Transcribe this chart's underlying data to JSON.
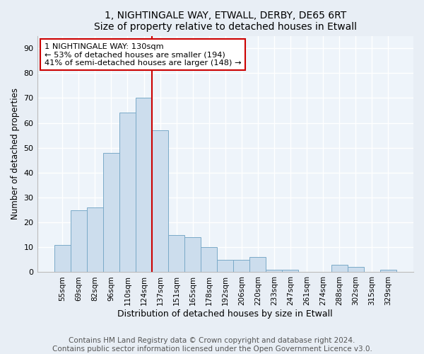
{
  "title": "1, NIGHTINGALE WAY, ETWALL, DERBY, DE65 6RT",
  "subtitle": "Size of property relative to detached houses in Etwall",
  "xlabel": "Distribution of detached houses by size in Etwall",
  "ylabel": "Number of detached properties",
  "categories": [
    "55sqm",
    "69sqm",
    "82sqm",
    "96sqm",
    "110sqm",
    "124sqm",
    "137sqm",
    "151sqm",
    "165sqm",
    "178sqm",
    "192sqm",
    "206sqm",
    "220sqm",
    "233sqm",
    "247sqm",
    "261sqm",
    "274sqm",
    "288sqm",
    "302sqm",
    "315sqm",
    "329sqm"
  ],
  "values": [
    11,
    25,
    26,
    48,
    64,
    70,
    57,
    15,
    14,
    10,
    5,
    5,
    6,
    1,
    1,
    0,
    0,
    3,
    2,
    0,
    1
  ],
  "bar_color": "#ccdded",
  "bar_edge_color": "#7aaac8",
  "vline_x": 6.0,
  "vline_color": "#cc0000",
  "annotation_lines": [
    "1 NIGHTINGALE WAY: 130sqm",
    "← 53% of detached houses are smaller (194)",
    "41% of semi-detached houses are larger (148) →"
  ],
  "ylim": [
    0,
    95
  ],
  "yticks": [
    0,
    10,
    20,
    30,
    40,
    50,
    60,
    70,
    80,
    90
  ],
  "footer_line1": "Contains HM Land Registry data © Crown copyright and database right 2024.",
  "footer_line2": "Contains public sector information licensed under the Open Government Licence v3.0.",
  "bg_color": "#e8eef5",
  "plot_bg_color": "#eef4fa",
  "grid_color": "#ffffff",
  "title_fontsize": 10,
  "footer_fontsize": 7.5
}
